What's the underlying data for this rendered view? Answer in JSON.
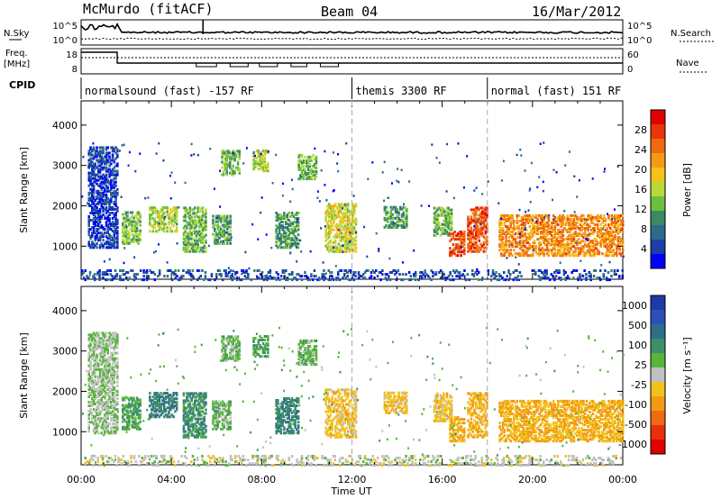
{
  "header": {
    "station": "McMurdo (fitACF)",
    "beam": "Beam 04",
    "date": "16/Mar/2012"
  },
  "side_labels": {
    "nsky": "N.Sky",
    "freq": "Freq.",
    "freq_unit": "[MHz]",
    "cpid": "CPID",
    "nsearch": "N.Search",
    "nave": "Nave"
  },
  "mini_axes": {
    "nsky_ticks": [
      "10^5",
      "10^0"
    ],
    "freq_ticks": [
      "18",
      "8"
    ],
    "nsearch_ticks": [
      "10^5",
      "10^0"
    ],
    "nave_ticks": [
      "60",
      "0"
    ]
  },
  "cpid_segments": [
    {
      "label": "normalsound (fast) -157 RF",
      "start_h": 0,
      "end_h": 12.0
    },
    {
      "label": "themis 3300 RF",
      "start_h": 12.0,
      "end_h": 18.0
    },
    {
      "label": "normal (fast) 151 RF",
      "start_h": 18.0,
      "end_h": 24.0
    }
  ],
  "colors": {
    "power_scale": [
      "#0000ff",
      "#1a3fa6",
      "#2e6a8e",
      "#3b8a64",
      "#6cbf3f",
      "#b9d83a",
      "#f5c21a",
      "#f59a14",
      "#f06a10",
      "#e8350c",
      "#e00000"
    ],
    "velocity_scale": [
      "#1f3aa8",
      "#2d4fb8",
      "#2f6e8a",
      "#3d8f6a",
      "#59b43c",
      "#c0c0c0",
      "#f2c21a",
      "#f29a14",
      "#ef6a10",
      "#e8300c",
      "#e00000"
    ]
  },
  "chart_data": [
    {
      "type": "heatmap",
      "title": "Power",
      "ylabel": "Slant Range [km]",
      "xlabel": "",
      "x_range_hours": [
        0,
        24
      ],
      "ylim": [
        180,
        4600
      ],
      "yticks": [
        1000,
        2000,
        3000,
        4000
      ],
      "colorbar": {
        "label": "Power [dB]",
        "ticks": [
          "4",
          "8",
          "12",
          "16",
          "20",
          "24",
          "28"
        ],
        "range": [
          0,
          30
        ]
      },
      "scatter_regions": [
        {
          "t0": 0.3,
          "t1": 1.6,
          "r0": 1000,
          "r1": 3500,
          "level": 3
        },
        {
          "t0": 1.8,
          "t1": 2.6,
          "r0": 1100,
          "r1": 1900,
          "level": 12
        },
        {
          "t0": 3.0,
          "t1": 4.2,
          "r0": 1400,
          "r1": 2000,
          "level": 14
        },
        {
          "t0": 4.5,
          "t1": 5.5,
          "r0": 900,
          "r1": 2000,
          "level": 12
        },
        {
          "t0": 5.8,
          "t1": 6.6,
          "r0": 1100,
          "r1": 1800,
          "level": 10
        },
        {
          "t0": 6.2,
          "t1": 7.0,
          "r0": 2800,
          "r1": 3400,
          "level": 12
        },
        {
          "t0": 7.6,
          "t1": 8.3,
          "r0": 2900,
          "r1": 3400,
          "level": 14
        },
        {
          "t0": 8.6,
          "t1": 9.6,
          "r0": 1000,
          "r1": 1900,
          "level": 10
        },
        {
          "t0": 9.6,
          "t1": 10.4,
          "r0": 2700,
          "r1": 3300,
          "level": 12
        },
        {
          "t0": 10.8,
          "t1": 12.2,
          "r0": 900,
          "r1": 2100,
          "level": 16
        },
        {
          "t0": 13.4,
          "t1": 14.4,
          "r0": 1500,
          "r1": 2000,
          "level": 10
        },
        {
          "t0": 15.6,
          "t1": 16.4,
          "r0": 1300,
          "r1": 2000,
          "level": 12
        },
        {
          "t0": 16.3,
          "t1": 17.0,
          "r0": 800,
          "r1": 1400,
          "level": 26
        },
        {
          "t0": 17.1,
          "t1": 18.0,
          "r0": 900,
          "r1": 2000,
          "level": 26
        },
        {
          "t0": 18.5,
          "t1": 24.0,
          "r0": 800,
          "r1": 1800,
          "level": 22
        },
        {
          "t0": 0.0,
          "t1": 24.0,
          "r0": 200,
          "r1": 450,
          "level": 4
        }
      ]
    },
    {
      "type": "heatmap",
      "title": "Velocity",
      "ylabel": "Slant Range [km]",
      "xlabel": "Time UT",
      "x_range_hours": [
        0,
        24
      ],
      "xticks": [
        "00:00",
        "04:00",
        "08:00",
        "12:00",
        "16:00",
        "20:00",
        "00:00"
      ],
      "ylim": [
        180,
        4600
      ],
      "yticks": [
        1000,
        2000,
        3000,
        4000
      ],
      "colorbar": {
        "label": "Velocity [m s⁻¹]",
        "ticks": [
          "1000",
          "500",
          "100",
          "25",
          "-25",
          "-100",
          "-500",
          "-1000"
        ]
      },
      "scatter_regions": [
        {
          "t0": 0.3,
          "t1": 1.6,
          "r0": 1000,
          "r1": 3500,
          "vel": 100
        },
        {
          "t0": 1.8,
          "t1": 2.6,
          "r0": 1100,
          "r1": 1900,
          "vel": 300
        },
        {
          "t0": 3.0,
          "t1": 4.2,
          "r0": 1400,
          "r1": 2000,
          "vel": 500
        },
        {
          "t0": 4.5,
          "t1": 5.5,
          "r0": 900,
          "r1": 2000,
          "vel": 400
        },
        {
          "t0": 5.8,
          "t1": 6.6,
          "r0": 1100,
          "r1": 1800,
          "vel": 200
        },
        {
          "t0": 6.2,
          "t1": 7.0,
          "r0": 2800,
          "r1": 3400,
          "vel": 200
        },
        {
          "t0": 7.6,
          "t1": 8.3,
          "r0": 2900,
          "r1": 3400,
          "vel": 300
        },
        {
          "t0": 8.6,
          "t1": 9.6,
          "r0": 1000,
          "r1": 1900,
          "vel": 500
        },
        {
          "t0": 9.6,
          "t1": 10.4,
          "r0": 2700,
          "r1": 3300,
          "vel": 200
        },
        {
          "t0": 10.8,
          "t1": 12.2,
          "r0": 900,
          "r1": 2100,
          "vel": -200
        },
        {
          "t0": 13.4,
          "t1": 14.4,
          "r0": 1500,
          "r1": 2000,
          "vel": -200
        },
        {
          "t0": 15.6,
          "t1": 16.4,
          "r0": 1300,
          "r1": 2000,
          "vel": -200
        },
        {
          "t0": 16.3,
          "t1": 17.0,
          "r0": 800,
          "r1": 1400,
          "vel": -300
        },
        {
          "t0": 17.1,
          "t1": 18.0,
          "r0": 900,
          "r1": 2000,
          "vel": -300
        },
        {
          "t0": 18.5,
          "t1": 24.0,
          "r0": 800,
          "r1": 1800,
          "vel": -300
        },
        {
          "t0": 0.0,
          "t1": 24.0,
          "r0": 200,
          "r1": 450,
          "vel": 0
        }
      ]
    }
  ]
}
